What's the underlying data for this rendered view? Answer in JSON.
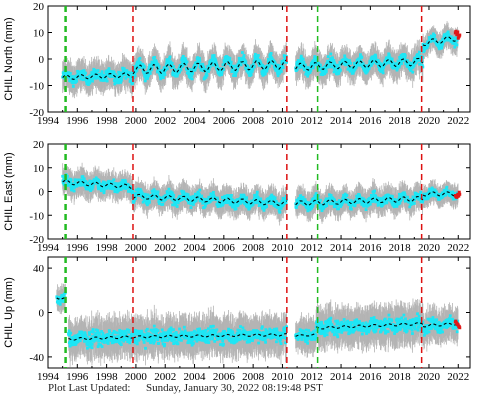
{
  "footer": {
    "label": "Plot Last Updated:",
    "timestamp": "Sunday, January 30, 2022 08:19:48 PST"
  },
  "colors": {
    "error_bars": "#b4b4b4",
    "data": "#1ee6f5",
    "model": "#000000",
    "recent": "#e01818",
    "equipment_change": "#dd1111",
    "earthquake": "#22bb22"
  },
  "chart_data": [
    {
      "type": "scatter",
      "station": "CHIL",
      "ylabel": "CHIL North (mm)",
      "ylim": [
        -20,
        20
      ],
      "yticks": [
        -20,
        -10,
        0,
        10,
        20
      ],
      "xlim": [
        1994,
        2022.8
      ],
      "xticks": [
        1994,
        1996,
        1998,
        2000,
        2002,
        2004,
        2006,
        2008,
        2010,
        2012,
        2014,
        2016,
        2018,
        2020,
        2022
      ],
      "segments": [
        {
          "x": [
            1995.0,
            1999.8
          ],
          "y": [
            -7,
            -6
          ],
          "amp": 1.2,
          "err": 5
        },
        {
          "x": [
            1999.8,
            2010.3
          ],
          "y": [
            -4,
            -2
          ],
          "amp": 2.5,
          "err": 5
        },
        {
          "x": [
            2010.9,
            2019.6
          ],
          "y": [
            -3,
            -1
          ],
          "amp": 2.0,
          "err": 5
        },
        {
          "x": [
            2019.6,
            2022.0
          ],
          "y": [
            6,
            8
          ],
          "amp": 1.5,
          "err": 4
        }
      ],
      "equipment_changes": [
        1999.8,
        2010.3,
        2019.5
      ],
      "earthquakes": [
        1995.2,
        2012.4
      ],
      "recent_segment": {
        "x": [
          2021.8,
          2022.1
        ],
        "y": [
          10,
          8
        ]
      }
    },
    {
      "type": "scatter",
      "station": "CHIL",
      "ylabel": "CHIL East (mm)",
      "ylim": [
        -20,
        20
      ],
      "yticks": [
        -20,
        -10,
        0,
        10,
        20
      ],
      "xlim": [
        1994,
        2022.8
      ],
      "xticks": [
        1994,
        1996,
        1998,
        2000,
        2002,
        2004,
        2006,
        2008,
        2010,
        2012,
        2014,
        2016,
        2018,
        2020,
        2022
      ],
      "segments": [
        {
          "x": [
            1995.0,
            1999.8
          ],
          "y": [
            4,
            2
          ],
          "amp": 1.2,
          "err": 5
        },
        {
          "x": [
            1999.8,
            2010.3
          ],
          "y": [
            -2,
            -5
          ],
          "amp": 1.5,
          "err": 5
        },
        {
          "x": [
            2010.9,
            2019.6
          ],
          "y": [
            -5,
            -3
          ],
          "amp": 1.5,
          "err": 5
        },
        {
          "x": [
            2019.6,
            2022.0
          ],
          "y": [
            -1,
            -1
          ],
          "amp": 1.2,
          "err": 4
        }
      ],
      "equipment_changes": [
        1999.8,
        2010.3,
        2019.5
      ],
      "earthquakes": [
        1995.2,
        2012.4
      ],
      "recent_segment": {
        "x": [
          2021.8,
          2022.1
        ],
        "y": [
          -2,
          -1
        ]
      }
    },
    {
      "type": "scatter",
      "station": "CHIL",
      "ylabel": "CHIL Up (mm)",
      "ylim": [
        -50,
        50
      ],
      "yticks": [
        -40,
        0,
        40
      ],
      "xlim": [
        1994,
        2022.8
      ],
      "xticks": [
        1994,
        1996,
        1998,
        2000,
        2002,
        2004,
        2006,
        2008,
        2010,
        2012,
        2014,
        2016,
        2018,
        2020,
        2022
      ],
      "segments": [
        {
          "x": [
            1994.6,
            1995.2
          ],
          "y": [
            14,
            12
          ],
          "amp": 2,
          "err": 10
        },
        {
          "x": [
            1995.4,
            1999.8
          ],
          "y": [
            -24,
            -22
          ],
          "amp": 1.5,
          "err": 16
        },
        {
          "x": [
            1999.8,
            2010.3
          ],
          "y": [
            -22,
            -20
          ],
          "amp": 1.5,
          "err": 16
        },
        {
          "x": [
            2010.9,
            2012.3
          ],
          "y": [
            -21,
            -20
          ],
          "amp": 1.0,
          "err": 14
        },
        {
          "x": [
            2012.3,
            2019.6
          ],
          "y": [
            -14,
            -10
          ],
          "amp": 1.5,
          "err": 16
        },
        {
          "x": [
            2019.6,
            2022.0
          ],
          "y": [
            -12,
            -10
          ],
          "amp": 1.5,
          "err": 14
        }
      ],
      "equipment_changes": [
        1999.8,
        2010.3,
        2019.5
      ],
      "earthquakes": [
        1995.2,
        2012.4
      ],
      "recent_segment": {
        "x": [
          2021.8,
          2022.1
        ],
        "y": [
          -8,
          -14
        ]
      }
    }
  ]
}
